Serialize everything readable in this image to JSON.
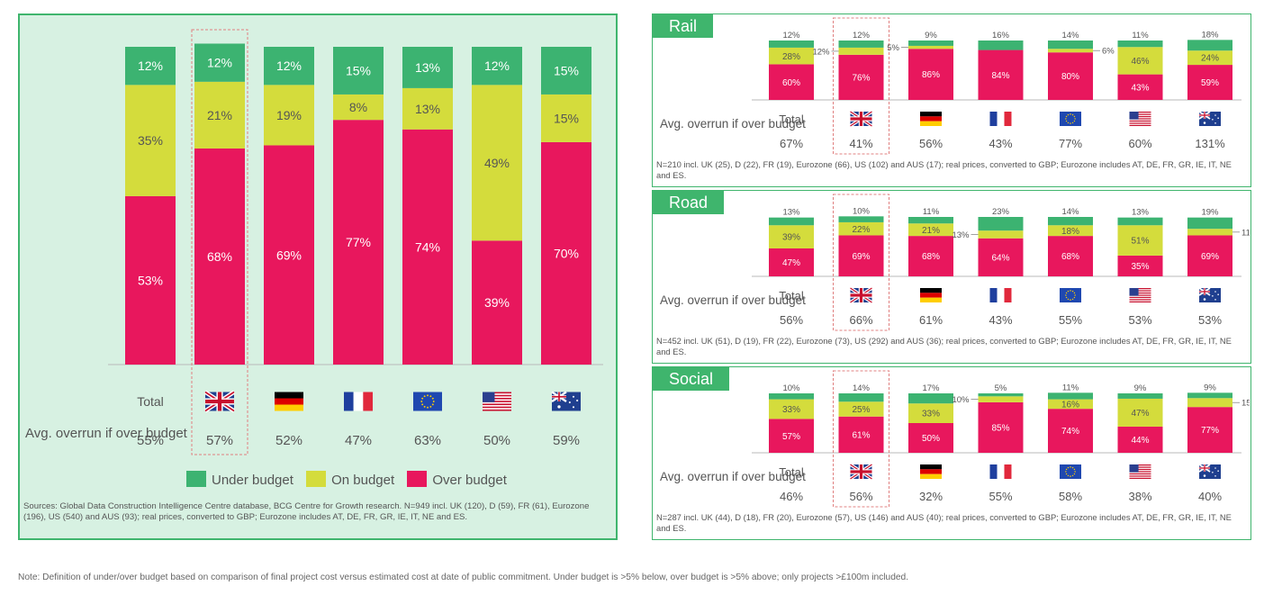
{
  "colors": {
    "under": "#3cb371",
    "on": "#d4dc3c",
    "over": "#e8175d",
    "panel_bg": "#d7f1e2",
    "panel_border": "#3fb56d"
  },
  "icons": [
    "uk-flag-icon",
    "germany-flag-icon",
    "france-flag-icon",
    "eu-flag-icon",
    "usa-flag-icon",
    "australia-flag-icon"
  ],
  "labels": {
    "total": "Total",
    "avg_overrun": "Avg. overrun if over budget"
  },
  "legend": [
    {
      "key": "under",
      "label": "Under budget"
    },
    {
      "key": "on",
      "label": "On budget"
    },
    {
      "key": "over",
      "label": "Over budget"
    }
  ],
  "chart_data": [
    {
      "type": "bar",
      "stacked": true,
      "panel": "all",
      "categories": [
        "Total",
        "UK",
        "D",
        "FR",
        "Eurozone",
        "US",
        "AUS"
      ],
      "highlight": "UK",
      "series": [
        {
          "name": "Over budget",
          "values": [
            53,
            68,
            69,
            77,
            74,
            39,
            70
          ]
        },
        {
          "name": "On budget",
          "values": [
            35,
            21,
            19,
            8,
            13,
            49,
            15
          ]
        },
        {
          "name": "Under budget",
          "values": [
            12,
            12,
            12,
            15,
            13,
            12,
            15
          ]
        }
      ],
      "avg_overrun": [
        "55%",
        "57%",
        "52%",
        "47%",
        "63%",
        "50%",
        "59%"
      ],
      "ylim": [
        0,
        100
      ],
      "note": "Sources: Global Data Construction Intelligence Centre database, BCG Centre for Growth research. N=949 incl. UK (120), D (59), FR (61), Eurozone (196), US (540) and AUS (93); real prices, converted to GBP; Eurozone includes AT, DE, FR, GR, IE, IT, NE and ES."
    },
    {
      "type": "bar",
      "stacked": true,
      "panel": "Rail",
      "categories": [
        "Total",
        "UK",
        "D",
        "FR",
        "Eurozone",
        "US",
        "AUS"
      ],
      "highlight": "UK",
      "series": [
        {
          "name": "Over budget",
          "values": [
            60,
            76,
            86,
            84,
            80,
            43,
            59
          ]
        },
        {
          "name": "On budget",
          "values": [
            28,
            12,
            5,
            0,
            6,
            46,
            24
          ]
        },
        {
          "name": "Under budget",
          "values": [
            12,
            12,
            9,
            16,
            14,
            11,
            18
          ]
        }
      ],
      "avg_overrun": [
        "67%",
        "41%",
        "56%",
        "43%",
        "77%",
        "60%",
        "131%"
      ],
      "ylim": [
        0,
        100
      ],
      "note": "N=210 incl. UK (25), D (22), FR (19), Eurozone (66), US (102) and AUS (17); real prices, converted to GBP; Eurozone includes AT, DE, FR, GR, IE, IT, NE and ES."
    },
    {
      "type": "bar",
      "stacked": true,
      "panel": "Road",
      "categories": [
        "Total",
        "UK",
        "D",
        "FR",
        "Eurozone",
        "US",
        "AUS"
      ],
      "highlight": "UK",
      "series": [
        {
          "name": "Over budget",
          "values": [
            47,
            69,
            68,
            64,
            68,
            35,
            69
          ]
        },
        {
          "name": "On budget",
          "values": [
            39,
            22,
            21,
            13,
            18,
            51,
            11
          ]
        },
        {
          "name": "Under budget",
          "values": [
            13,
            10,
            11,
            23,
            14,
            13,
            19
          ]
        }
      ],
      "avg_overrun": [
        "56%",
        "66%",
        "61%",
        "43%",
        "55%",
        "53%",
        "53%"
      ],
      "ylim": [
        0,
        100
      ],
      "note": "N=452 incl. UK (51), D (19), FR (22), Eurozone (73), US (292) and AUS (36); real prices, converted to GBP; Eurozone includes AT, DE, FR, GR, IE, IT, NE and ES."
    },
    {
      "type": "bar",
      "stacked": true,
      "panel": "Social",
      "categories": [
        "Total",
        "UK",
        "D",
        "FR",
        "Eurozone",
        "US",
        "AUS"
      ],
      "highlight": "UK",
      "series": [
        {
          "name": "Over budget",
          "values": [
            57,
            61,
            50,
            85,
            74,
            44,
            77
          ]
        },
        {
          "name": "On budget",
          "values": [
            33,
            25,
            33,
            10,
            16,
            47,
            15
          ]
        },
        {
          "name": "Under budget",
          "values": [
            10,
            14,
            17,
            5,
            11,
            9,
            9
          ]
        }
      ],
      "avg_overrun": [
        "46%",
        "56%",
        "32%",
        "55%",
        "58%",
        "38%",
        "40%"
      ],
      "ylim": [
        0,
        100
      ],
      "note": "N=287 incl. UK (44), D (18), FR (20), Eurozone (57), US (146) and AUS (40); real prices, converted to GBP; Eurozone includes AT, DE, FR, GR, IE, IT, NE and ES."
    }
  ],
  "footnote": "Note: Definition of under/over budget based on comparison of final project cost versus estimated cost at date of public commitment. Under budget is >5% below, over budget is >5% above; only projects >£100m included."
}
